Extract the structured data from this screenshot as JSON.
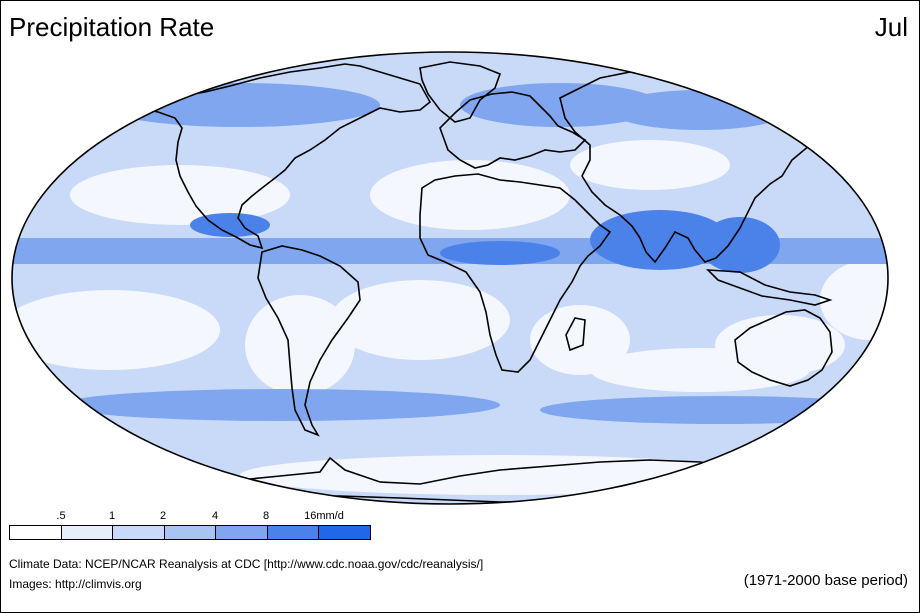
{
  "title": "Precipitation Rate",
  "month": "Jul",
  "legend": {
    "labels": [
      ".5",
      "1",
      "2",
      "4",
      "8",
      "16mm/d"
    ],
    "colors": [
      "#ffffff",
      "#e6eefc",
      "#c9d9f8",
      "#a9c3f2",
      "#7fa6ee",
      "#4a82ea",
      "#2266ea"
    ]
  },
  "credits": {
    "data": "Climate Data:  NCEP/NCAR Reanalysis at CDC [http://www.cdc.noaa.gov/cdc/reanalysis/]",
    "images": "Images:  http://climvis.org"
  },
  "base_period": "(1971-2000 base period)",
  "map": {
    "projection": "robinson-like ellipse",
    "palette": {
      "ocean_base": "#c9d9f8",
      "dry": "#f4f7fe",
      "wet": "#7fa6ee",
      "very_wet": "#4a82ea",
      "coastline": "#000000"
    }
  }
}
